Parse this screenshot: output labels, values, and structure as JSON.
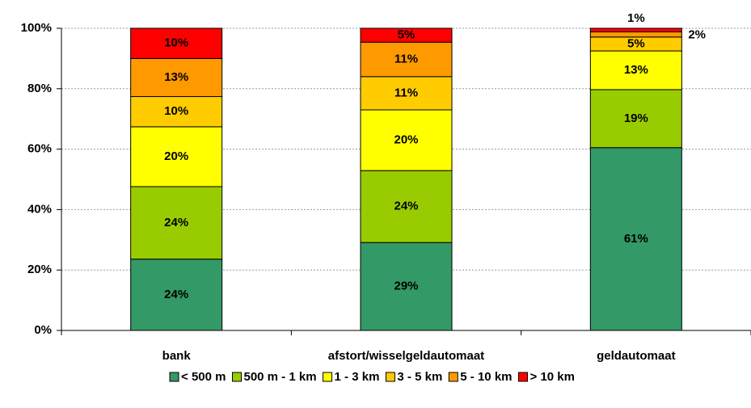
{
  "chart_data": {
    "type": "stacked_bar",
    "categories": [
      "bank",
      "afstort/wisselgeldautomaat",
      "geldautomaat"
    ],
    "series": [
      {
        "name": "< 500 m",
        "color": "#339966",
        "values": [
          23.6,
          29.1,
          60.5
        ],
        "value_labels": [
          "24%",
          "29%",
          "61%"
        ]
      },
      {
        "name": "500 m - 1 km",
        "color": "#99cc00",
        "values": [
          24.0,
          23.8,
          19.2
        ],
        "value_labels": [
          "24%",
          "24%",
          "19%"
        ]
      },
      {
        "name": "1 - 3 km",
        "color": "#ffff00",
        "values": [
          19.8,
          20.1,
          12.8
        ],
        "value_labels": [
          "20%",
          "20%",
          "13%"
        ]
      },
      {
        "name": "3 - 5 km",
        "color": "#ffcc00",
        "values": [
          10.0,
          11.0,
          4.6
        ],
        "value_labels": [
          "10%",
          "11%",
          "5%"
        ]
      },
      {
        "name": "5 - 10 km",
        "color": "#ff9900",
        "values": [
          12.6,
          11.4,
          1.7
        ],
        "value_labels": [
          "13%",
          "11%",
          "2%"
        ]
      },
      {
        "name": "> 10 km",
        "color": "#ff0000",
        "values": [
          10.0,
          4.6,
          1.2
        ],
        "value_labels": [
          "10%",
          "5%",
          "1%"
        ]
      }
    ],
    "ylim": [
      0,
      100
    ],
    "yticks": [
      {
        "value": 0,
        "label": "0%"
      },
      {
        "value": 20,
        "label": "20%"
      },
      {
        "value": 40,
        "label": "40%"
      },
      {
        "value": 60,
        "label": "60%"
      },
      {
        "value": 80,
        "label": "80%"
      },
      {
        "value": 100,
        "label": "100%"
      }
    ],
    "grid": true,
    "legend": "bottom"
  }
}
